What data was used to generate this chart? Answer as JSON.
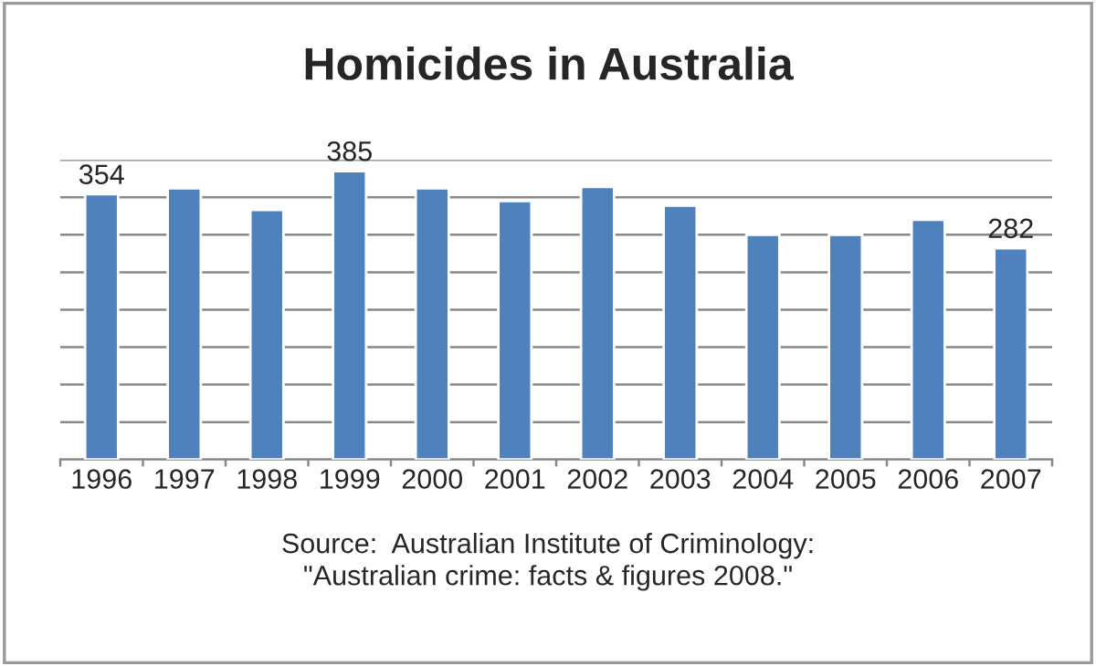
{
  "chart_data": {
    "type": "bar",
    "title": "Homicides in Australia",
    "categories": [
      "1996",
      "1997",
      "1998",
      "1999",
      "2000",
      "2001",
      "2002",
      "2003",
      "2004",
      "2005",
      "2006",
      "2007"
    ],
    "values": [
      354,
      362,
      333,
      385,
      362,
      345,
      364,
      339,
      300,
      300,
      320,
      282
    ],
    "value_labels": [
      "354",
      null,
      null,
      "385",
      null,
      null,
      null,
      null,
      null,
      null,
      null,
      "282"
    ],
    "color": "#4f81bd",
    "ylim": [
      0,
      400
    ],
    "yticks": [
      {
        "value": 0,
        "label": null
      },
      {
        "value": 50,
        "label": null
      },
      {
        "value": 100,
        "label": null
      },
      {
        "value": 150,
        "label": null
      },
      {
        "value": 200,
        "label": null
      },
      {
        "value": 250,
        "label": null
      },
      {
        "value": 300,
        "label": null
      },
      {
        "value": 350,
        "label": null
      },
      {
        "value": 400,
        "label": null
      }
    ],
    "tick_labels": "x",
    "grid": "y",
    "annotations": [
      "Source:  Australian Institute of Criminology:\n\"Australian crime: facts & figures 2008.\""
    ]
  }
}
